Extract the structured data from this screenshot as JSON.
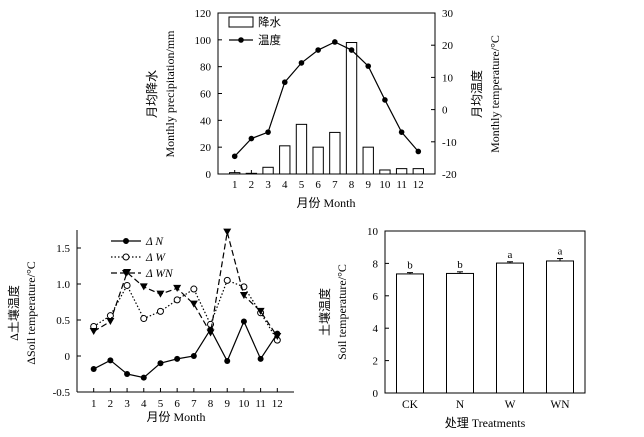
{
  "chart_data": [
    {
      "type": "bar+line",
      "xlabel": "月份 Month",
      "ylabel_zh": "月均降水",
      "ylabel_en": "Monthly precipitation/mm",
      "y2label_zh": "月均温度",
      "y2label_en": "Monthly temperature/°C",
      "categories": [
        "1",
        "2",
        "3",
        "4",
        "5",
        "6",
        "7",
        "8",
        "9",
        "10",
        "11",
        "12"
      ],
      "ylim": [
        0,
        120
      ],
      "yticks": [
        "0",
        "20",
        "40",
        "60",
        "80",
        "100",
        "120"
      ],
      "y2lim": [
        -20,
        30
      ],
      "y2ticks": [
        "-20",
        "-10",
        "0",
        "10",
        "20",
        "30"
      ],
      "legend": [
        "降水",
        "温度"
      ],
      "legend_position": "top-right",
      "series": [
        {
          "name": "降水",
          "type": "bar",
          "axis": "left",
          "values": [
            1,
            0.5,
            5,
            21,
            37,
            20,
            31,
            98,
            20,
            3,
            4,
            4
          ]
        },
        {
          "name": "温度",
          "type": "line",
          "axis": "right",
          "values": [
            -14.5,
            -9,
            -7,
            8.5,
            14.5,
            18.5,
            21,
            18.5,
            13.5,
            3,
            -7,
            -13
          ]
        }
      ]
    },
    {
      "type": "line",
      "xlabel": "月份 Month",
      "ylabel_zh": "Δ土壤温度",
      "ylabel_en": "ΔSoil temperature/°C",
      "categories": [
        "1",
        "2",
        "3",
        "4",
        "5",
        "6",
        "7",
        "8",
        "9",
        "10",
        "11",
        "12"
      ],
      "ylim": [
        -0.5,
        1.75
      ],
      "yticks": [
        "-0.5",
        "0",
        "0.5",
        "1.0",
        "1.5"
      ],
      "legend": [
        "Δ N",
        "Δ W",
        "Δ WN"
      ],
      "legend_position": "top-left",
      "series": [
        {
          "name": "Δ N",
          "marker": "filled-circle",
          "style": "solid",
          "values": [
            -0.18,
            -0.06,
            -0.25,
            -0.3,
            -0.1,
            -0.04,
            0.0,
            0.37,
            -0.07,
            0.48,
            -0.04,
            0.31
          ]
        },
        {
          "name": "Δ W",
          "marker": "open-circle",
          "style": "dotted",
          "values": [
            0.41,
            0.56,
            0.98,
            0.52,
            0.62,
            0.78,
            0.93,
            0.44,
            1.05,
            0.96,
            0.6,
            0.22
          ]
        },
        {
          "name": "Δ WN",
          "marker": "filled-triangle-down",
          "style": "dashed",
          "values": [
            0.34,
            0.48,
            1.16,
            0.96,
            0.86,
            0.94,
            0.72,
            0.32,
            1.72,
            0.84,
            0.62,
            0.27
          ]
        }
      ]
    },
    {
      "type": "bar",
      "xlabel": "处理 Treatments",
      "ylabel_zh": "土壤温度",
      "ylabel_en": "Soil temperature/°C",
      "categories": [
        "CK",
        "N",
        "W",
        "WN"
      ],
      "values": [
        7.35,
        7.38,
        8.02,
        8.15
      ],
      "errors": [
        0.08,
        0.1,
        0.08,
        0.15
      ],
      "labels": [
        "b",
        "b",
        "a",
        "a"
      ],
      "ylim": [
        0,
        10
      ],
      "yticks": [
        "0",
        "2",
        "4",
        "6",
        "8",
        "10"
      ]
    }
  ]
}
